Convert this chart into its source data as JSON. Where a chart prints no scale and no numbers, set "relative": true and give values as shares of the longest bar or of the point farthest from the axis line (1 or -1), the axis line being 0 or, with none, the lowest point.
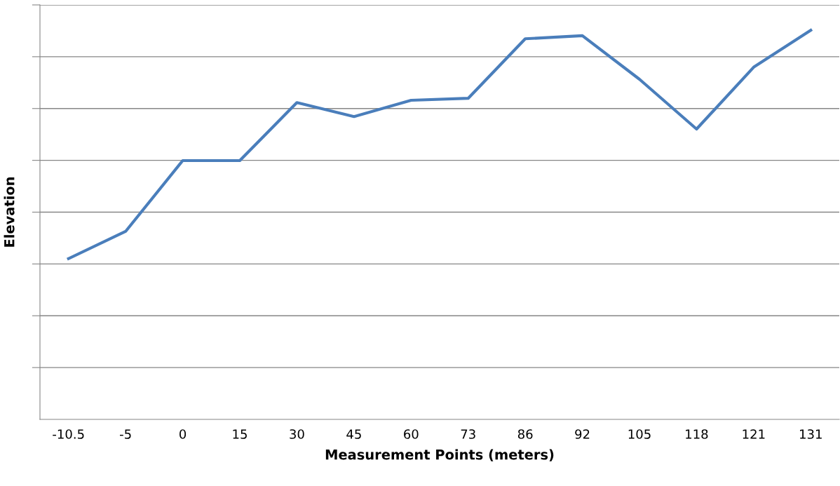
{
  "chart_data": {
    "type": "line",
    "xlabel": "Measurement Points (meters)",
    "ylabel": "Elevation",
    "categories": [
      "-10.5",
      "-5",
      "0",
      "15",
      "30",
      "45",
      "60",
      "73",
      "86",
      "92",
      "105",
      "118",
      "121",
      "131"
    ],
    "series": [
      {
        "color": "#4a7ebb",
        "values": [
          0.413,
          0.483,
          0.665,
          0.665,
          0.814,
          0.778,
          0.82,
          0.825,
          0.978,
          0.986,
          0.874,
          0.746,
          0.905,
          1.0
        ]
      }
    ],
    "relative": true,
    "grid": "y",
    "legend": false,
    "marker": "none",
    "line_style": "solid"
  }
}
